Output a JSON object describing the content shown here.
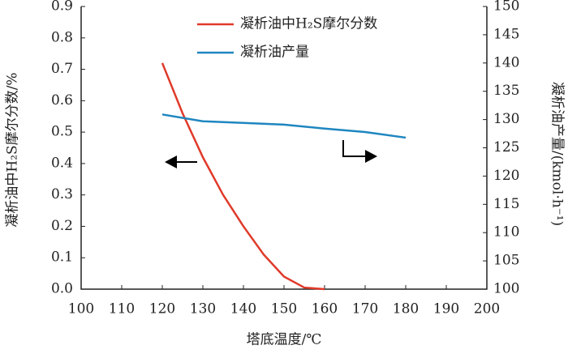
{
  "chart_data": {
    "type": "line",
    "x_label": "塔底温度/℃",
    "y_label": "凝析油中H₂S摩尔分数/%",
    "y2_label": "凝析油产量/(kmol·h⁻¹)",
    "xlim": [
      100,
      200
    ],
    "xticks": [
      100,
      110,
      120,
      130,
      140,
      150,
      160,
      170,
      180,
      190,
      200
    ],
    "ylim": [
      0,
      0.9
    ],
    "yticks": [
      {
        "value": 0,
        "label": "0.0"
      },
      0.1,
      0.2,
      0.3,
      0.4,
      0.5,
      0.6,
      0.7,
      0.8,
      0.9
    ],
    "y2lim": [
      100,
      150
    ],
    "y2ticks": [
      100,
      105,
      110,
      115,
      120,
      125,
      130,
      135,
      140,
      145,
      150
    ],
    "grid": false,
    "legend": "top",
    "series": [
      {
        "name": "凝析油中H₂S摩尔分数",
        "color": "#e03a2a",
        "x": [
          120,
          125,
          130,
          135,
          140,
          145,
          150,
          155,
          160
        ],
        "values": [
          0.72,
          0.56,
          0.42,
          0.3,
          0.2,
          0.11,
          0.04,
          0.005,
          0
        ]
      },
      {
        "name": "凝析油产量",
        "color": "#1f86c0",
        "axis": "y2",
        "x": [
          120,
          130,
          140,
          150,
          160,
          170,
          180
        ],
        "values": [
          130.9,
          129.7,
          129.4,
          129.1,
          128.4,
          127.8,
          126.8
        ]
      }
    ]
  }
}
